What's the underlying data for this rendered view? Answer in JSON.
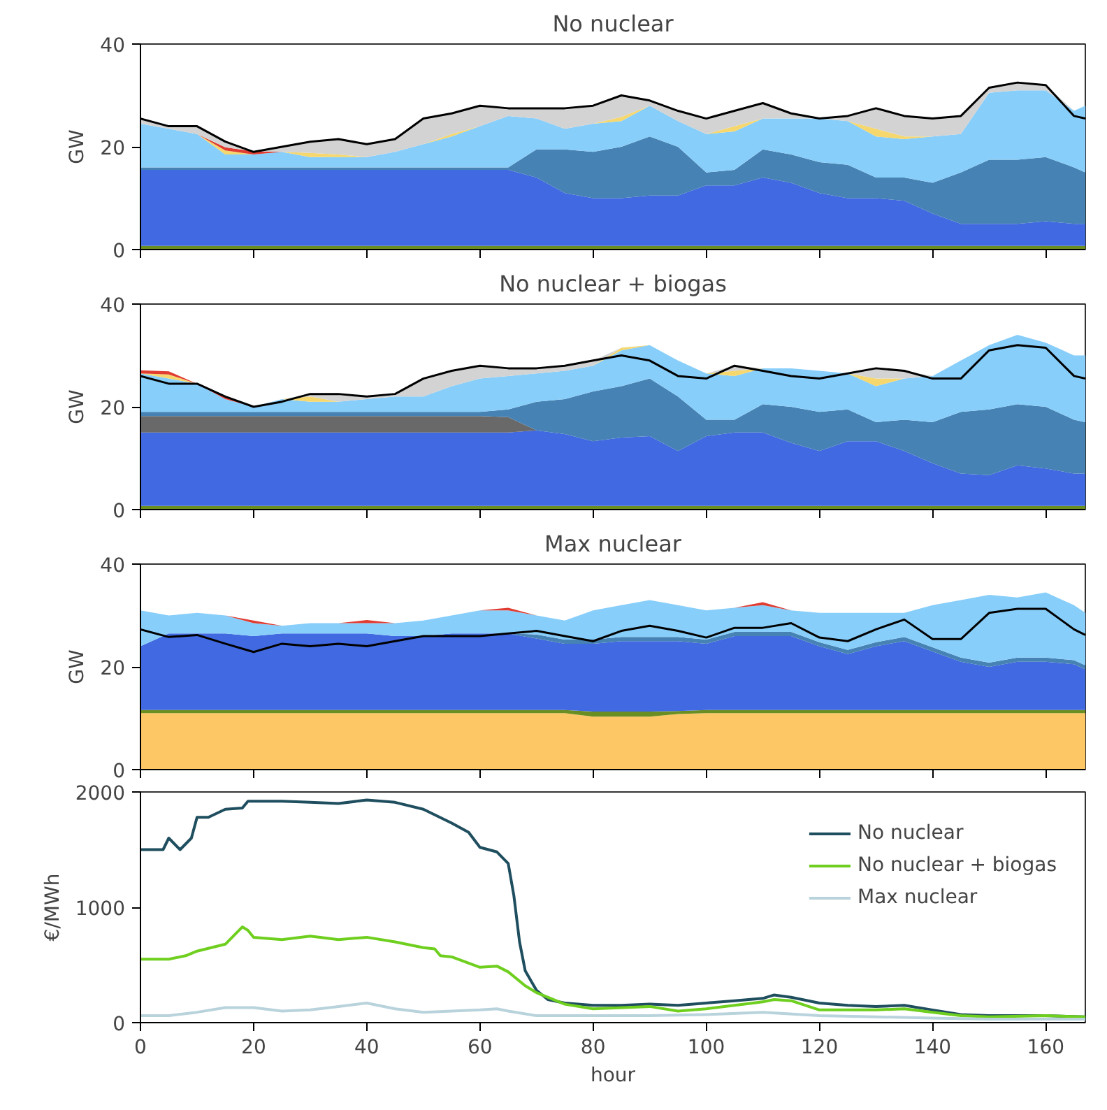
{
  "chart_data": [
    {
      "type": "area",
      "stacked": true,
      "title": "No nuclear",
      "ylabel": "GW",
      "xlim": [
        0,
        167
      ],
      "ylim": [
        0,
        40
      ],
      "xticks": [
        0,
        20,
        40,
        60,
        80,
        100,
        120,
        140,
        160
      ],
      "yticks": [
        0,
        20,
        40
      ],
      "tick_labels": "y",
      "x": [
        0,
        5,
        10,
        15,
        20,
        25,
        30,
        35,
        40,
        45,
        50,
        55,
        60,
        65,
        70,
        75,
        80,
        85,
        90,
        95,
        100,
        105,
        110,
        115,
        120,
        125,
        130,
        135,
        140,
        145,
        150,
        155,
        160,
        165,
        167
      ],
      "series": [
        {
          "color": "#6b8e23",
          "values": [
            0.7,
            0.7,
            0.7,
            0.7,
            0.7,
            0.7,
            0.7,
            0.7,
            0.7,
            0.7,
            0.7,
            0.7,
            0.7,
            0.7,
            0.7,
            0.7,
            0.7,
            0.7,
            0.7,
            0.7,
            0.7,
            0.7,
            0.7,
            0.7,
            0.7,
            0.7,
            0.7,
            0.7,
            0.7,
            0.7,
            0.7,
            0.7,
            0.7,
            0.7,
            0.7
          ]
        },
        {
          "color": "#4169e1",
          "values": [
            14.8,
            14.8,
            14.8,
            14.8,
            14.8,
            14.8,
            14.8,
            14.8,
            14.8,
            14.8,
            14.8,
            14.8,
            14.8,
            14.8,
            13.3,
            10.3,
            9.3,
            9.3,
            9.8,
            9.8,
            11.8,
            11.8,
            13.3,
            12.3,
            10.3,
            9.3,
            9.3,
            8.8,
            6.3,
            4.3,
            4.3,
            4.3,
            4.8,
            4.3,
            4.3
          ]
        },
        {
          "color": "#4682b4",
          "values": [
            0.5,
            0.5,
            0.5,
            0.5,
            0.5,
            0.5,
            0.5,
            0.5,
            0.5,
            0.5,
            0.5,
            0.5,
            0.5,
            0.5,
            5.5,
            8.5,
            9,
            10,
            11.5,
            9.5,
            2.5,
            3,
            5.5,
            5.5,
            6,
            6.5,
            4,
            4.5,
            6,
            10,
            12.5,
            12.5,
            12.5,
            11,
            10
          ]
        },
        {
          "color": "#87cefa",
          "values": [
            8.5,
            7.5,
            6.5,
            2.5,
            2.5,
            3,
            2,
            2,
            2,
            3,
            4.5,
            6,
            8,
            10,
            6,
            4,
            5.5,
            5,
            6,
            5,
            7.5,
            7.5,
            6,
            7,
            8.5,
            8.5,
            8,
            7.5,
            9,
            7.5,
            13,
            13.5,
            13,
            11,
            13
          ]
        },
        {
          "color": "#f5d76e",
          "values": [
            null,
            null,
            0,
            0.8,
            0,
            0,
            0.8,
            0.5,
            0,
            null,
            0,
            0.5,
            0,
            null,
            null,
            null,
            0,
            0.8,
            0,
            null,
            0,
            1,
            0,
            null,
            null,
            0,
            1.5,
            0.5,
            0,
            null,
            null,
            null,
            null,
            null,
            null
          ]
        },
        {
          "color": "#e03c31",
          "values": [
            null,
            null,
            0,
            0.6,
            0.6,
            0,
            null,
            null,
            null,
            null,
            null,
            null,
            null,
            null,
            null,
            null,
            null,
            null,
            null,
            null,
            null,
            null,
            null,
            null,
            null,
            null,
            null,
            null,
            null,
            null,
            null,
            null,
            null,
            null,
            null
          ]
        },
        {
          "color": "#d3d3d3",
          "values": [
            1,
            0.5,
            1.5,
            1.1,
            0,
            1,
            2.2,
            3,
            2.5,
            2.5,
            5,
            4,
            4,
            1.5,
            2,
            4,
            3.5,
            4.2,
            1,
            2,
            3,
            3,
            3,
            1,
            0,
            1,
            4,
            4,
            3.5,
            3.5,
            1,
            1.5,
            1,
            0,
            null
          ]
        },
        {
          "type": "line",
          "color": "#000000",
          "values": [
            25.5,
            24,
            24,
            21,
            19,
            20,
            21,
            21.5,
            20.5,
            21.5,
            25.5,
            26.5,
            28,
            27.5,
            27.5,
            27.5,
            28,
            30,
            29,
            27,
            25.5,
            27,
            28.5,
            26.5,
            25.5,
            26,
            27.5,
            26,
            25.5,
            26,
            31.5,
            32.5,
            32,
            26,
            25.5
          ]
        }
      ]
    },
    {
      "type": "area",
      "stacked": true,
      "title": "No nuclear + biogas",
      "ylabel": "GW",
      "xlim": [
        0,
        167
      ],
      "ylim": [
        0,
        40
      ],
      "xticks": [
        0,
        20,
        40,
        60,
        80,
        100,
        120,
        140,
        160
      ],
      "yticks": [
        0,
        20,
        40
      ],
      "tick_labels": "y",
      "x": [
        0,
        5,
        10,
        15,
        20,
        25,
        30,
        35,
        40,
        45,
        50,
        55,
        60,
        65,
        70,
        75,
        80,
        85,
        90,
        95,
        100,
        105,
        110,
        115,
        120,
        125,
        130,
        135,
        140,
        145,
        150,
        155,
        160,
        165,
        167
      ],
      "series": [
        {
          "color": "#6b8e23",
          "values": [
            0.7,
            0.7,
            0.7,
            0.7,
            0.7,
            0.7,
            0.7,
            0.7,
            0.7,
            0.7,
            0.7,
            0.7,
            0.7,
            0.7,
            0.7,
            0.7,
            0.7,
            0.7,
            0.7,
            0.7,
            0.7,
            0.7,
            0.7,
            0.7,
            0.7,
            0.7,
            0.7,
            0.7,
            0.7,
            0.7,
            0.7,
            0.7,
            0.7,
            0.7,
            0.7
          ]
        },
        {
          "color": "#4169e1",
          "values": [
            14.3,
            14.3,
            14.3,
            14.3,
            14.3,
            14.3,
            14.3,
            14.3,
            14.3,
            14.3,
            14.3,
            14.3,
            14.3,
            14.3,
            14.7,
            14,
            12.6,
            13.3,
            13.6,
            10.7,
            13.6,
            14.3,
            14.3,
            12.3,
            10.7,
            12.6,
            12.6,
            10.7,
            8.3,
            6.3,
            6,
            7.9,
            7.3,
            6.3,
            6.3
          ]
        },
        {
          "color": "#696969",
          "values": [
            3.2,
            3.2,
            3.2,
            3.2,
            3.2,
            3.2,
            3.2,
            3.2,
            3.2,
            3.2,
            3.2,
            3.2,
            3.2,
            3,
            0,
            null,
            null,
            null,
            null,
            null,
            null,
            null,
            null,
            null,
            null,
            null,
            null,
            null,
            null,
            null,
            null,
            null,
            null,
            null,
            null
          ]
        },
        {
          "color": "#4682b4",
          "values": [
            0.8,
            0.8,
            0.8,
            0.8,
            0.8,
            0.8,
            0.8,
            0.8,
            0.8,
            0.8,
            0.8,
            0.8,
            0.8,
            1.5,
            5.6,
            6.8,
            9.7,
            10,
            11.2,
            10.6,
            3.2,
            2.5,
            5.5,
            7,
            7.6,
            6.2,
            3.7,
            6.1,
            8,
            12,
            12.8,
            11.9,
            12,
            10.5,
            10
          ]
        },
        {
          "color": "#87cefa",
          "values": [
            7.5,
            6.5,
            5.5,
            2.5,
            1,
            2.5,
            2,
            2,
            2.5,
            3,
            3,
            5,
            6.5,
            6.5,
            5.5,
            5.5,
            5,
            7,
            6.5,
            7,
            9,
            8.5,
            7,
            7.5,
            8,
            7,
            7,
            8,
            9,
            10,
            12.5,
            13.5,
            12.5,
            12.5,
            13
          ]
        },
        {
          "color": "#f5d76e",
          "values": [
            0,
            0.8,
            0,
            null,
            null,
            0,
            1,
            0,
            null,
            null,
            null,
            null,
            null,
            null,
            null,
            null,
            0,
            0.5,
            0,
            null,
            0,
            1,
            0,
            null,
            null,
            0,
            1.5,
            0,
            null,
            null,
            null,
            null,
            null,
            null,
            null
          ]
        },
        {
          "color": "#e03c31",
          "values": [
            0.6,
            0.6,
            0,
            0.6,
            0,
            null,
            null,
            null,
            null,
            null,
            null,
            null,
            null,
            null,
            null,
            null,
            null,
            null,
            null,
            null,
            null,
            null,
            null,
            null,
            null,
            null,
            null,
            null,
            null,
            null,
            null,
            null,
            null,
            null,
            null
          ]
        },
        {
          "color": "#d3d3d3",
          "values": [
            null,
            null,
            null,
            null,
            null,
            0,
            0.5,
            1.5,
            0.5,
            0.5,
            3.5,
            3,
            2.5,
            1.5,
            1,
            1,
            1,
            0,
            null,
            null,
            0,
            1,
            0,
            null,
            null,
            0,
            2,
            1.5,
            0,
            null,
            null,
            null,
            null,
            null,
            null
          ]
        },
        {
          "type": "line",
          "color": "#000000",
          "values": [
            26,
            24.5,
            24.5,
            22,
            20,
            21,
            22.5,
            22.5,
            22,
            22.5,
            25.5,
            27,
            28,
            27.5,
            27.5,
            28,
            29,
            30,
            29,
            26,
            25.5,
            28,
            27,
            26,
            25.5,
            26.5,
            27.5,
            27,
            25.5,
            25.5,
            31,
            32,
            31.5,
            26,
            25.5
          ]
        }
      ]
    },
    {
      "type": "area",
      "stacked": true,
      "title": "Max nuclear",
      "ylabel": "GW",
      "xlim": [
        0,
        167
      ],
      "ylim": [
        0,
        40
      ],
      "xticks": [
        0,
        20,
        40,
        60,
        80,
        100,
        120,
        140,
        160
      ],
      "yticks": [
        0,
        20,
        40
      ],
      "tick_labels": "y",
      "x": [
        0,
        5,
        10,
        15,
        20,
        25,
        30,
        35,
        40,
        45,
        50,
        55,
        60,
        65,
        70,
        75,
        80,
        85,
        90,
        95,
        100,
        105,
        110,
        115,
        120,
        125,
        130,
        135,
        140,
        145,
        150,
        155,
        160,
        165,
        167
      ],
      "series": [
        {
          "color": "#fdc765",
          "values": [
            11,
            11,
            11,
            11,
            11,
            11,
            11,
            11,
            11,
            11,
            11,
            11,
            11,
            11,
            11,
            11,
            10.3,
            10.3,
            10.3,
            10.8,
            11,
            11,
            11,
            11,
            11,
            11,
            11,
            11,
            11,
            11,
            11,
            11,
            11,
            11,
            11
          ]
        },
        {
          "color": "#6b8e23",
          "values": [
            0.6,
            0.6,
            0.6,
            0.6,
            0.6,
            0.6,
            0.6,
            0.6,
            0.6,
            0.6,
            0.6,
            0.6,
            0.6,
            0.6,
            0.6,
            0.6,
            1,
            1,
            1,
            0.6,
            0.6,
            0.6,
            0.6,
            0.6,
            0.6,
            0.6,
            0.6,
            0.6,
            0.6,
            0.6,
            0.6,
            0.6,
            0.6,
            0.6,
            0.6
          ]
        },
        {
          "color": "#4169e1",
          "values": [
            12.4,
            14.9,
            14.9,
            14.9,
            14.4,
            14.9,
            14.9,
            14.9,
            14.9,
            14.4,
            14.4,
            14.9,
            14.9,
            14.9,
            13.9,
            12.9,
            13.2,
            13.7,
            13.7,
            13.6,
            12.9,
            14.4,
            14.4,
            14.4,
            12.4,
            10.9,
            12.4,
            13.4,
            11.4,
            9.4,
            8.4,
            9.4,
            9.4,
            8.9,
            7.9
          ]
        },
        {
          "color": "#4682b4",
          "values": [
            null,
            null,
            null,
            null,
            null,
            null,
            null,
            null,
            null,
            null,
            null,
            null,
            null,
            0,
            0.8,
            0.8,
            0.8,
            0.8,
            0.8,
            0.8,
            0.8,
            0.8,
            0.8,
            0.8,
            0.8,
            0.8,
            0.8,
            0.8,
            0.8,
            0.8,
            0.8,
            0.8,
            0.8,
            0.8,
            0.8
          ]
        },
        {
          "color": "#87cefa",
          "values": [
            7,
            3.5,
            4,
            3.5,
            2.5,
            1.5,
            2,
            2,
            2,
            2.5,
            3,
            3.5,
            4.5,
            4.5,
            3.7,
            3.7,
            5.7,
            6.2,
            7.2,
            6.2,
            5.7,
            4.7,
            5.2,
            4.2,
            5.7,
            7.2,
            5.7,
            4.7,
            8.2,
            11.2,
            13.2,
            11.7,
            12.7,
            10.7,
            10.2
          ]
        },
        {
          "color": "#e03c31",
          "values": [
            null,
            null,
            null,
            0,
            0.5,
            0,
            null,
            0,
            0.6,
            0,
            null,
            null,
            0,
            0.5,
            0,
            null,
            null,
            null,
            null,
            null,
            null,
            0,
            0.6,
            0,
            null,
            null,
            null,
            null,
            null,
            null,
            null,
            null,
            null,
            null,
            null
          ]
        },
        {
          "type": "line",
          "color": "#000000",
          "values": [
            27.3,
            25.8,
            26.2,
            24.5,
            22.9,
            24.5,
            24,
            24.5,
            24,
            25,
            26,
            26,
            26,
            26.5,
            27,
            26,
            25,
            27,
            28,
            27,
            25.7,
            27.6,
            27.6,
            28.5,
            25.7,
            25,
            27.3,
            29.2,
            25.4,
            25.4,
            30.5,
            31.3,
            31.3,
            27.3,
            26.2
          ]
        }
      ]
    },
    {
      "type": "line",
      "xlabel": "hour",
      "ylabel": "€/MWh",
      "xlim": [
        0,
        167
      ],
      "ylim": [
        0,
        2000
      ],
      "xticks": [
        0,
        20,
        40,
        60,
        80,
        100,
        120,
        140,
        160
      ],
      "yticks": [
        0,
        1000,
        2000
      ],
      "legend": "top right",
      "series": [
        {
          "name": "No nuclear",
          "color": "#1f4e5f",
          "x": [
            0,
            4,
            5,
            7,
            9,
            10,
            12,
            15,
            18,
            19,
            25,
            30,
            35,
            40,
            45,
            50,
            55,
            58,
            60,
            63,
            65,
            66,
            67,
            68,
            70,
            72,
            75,
            80,
            85,
            90,
            95,
            100,
            105,
            110,
            112,
            115,
            120,
            125,
            130,
            135,
            140,
            145,
            150,
            155,
            160,
            167
          ],
          "values": [
            1500,
            1500,
            1600,
            1500,
            1600,
            1780,
            1780,
            1850,
            1860,
            1920,
            1920,
            1910,
            1900,
            1930,
            1910,
            1850,
            1730,
            1650,
            1520,
            1480,
            1380,
            1100,
            700,
            450,
            280,
            200,
            170,
            150,
            150,
            160,
            150,
            170,
            190,
            210,
            240,
            220,
            170,
            150,
            140,
            150,
            110,
            70,
            60,
            60,
            60,
            50
          ]
        },
        {
          "name": "No nuclear + biogas",
          "color": "#6fcf1f",
          "x": [
            0,
            5,
            8,
            10,
            15,
            18,
            19,
            20,
            25,
            30,
            35,
            40,
            45,
            50,
            52,
            53,
            55,
            60,
            63,
            65,
            68,
            70,
            75,
            80,
            90,
            95,
            100,
            105,
            110,
            112,
            115,
            120,
            125,
            130,
            135,
            140,
            145,
            150,
            160,
            167
          ],
          "values": [
            550,
            550,
            580,
            620,
            680,
            830,
            800,
            740,
            720,
            750,
            720,
            740,
            700,
            650,
            640,
            580,
            570,
            480,
            490,
            440,
            320,
            260,
            160,
            120,
            140,
            100,
            120,
            150,
            180,
            200,
            190,
            110,
            110,
            110,
            120,
            90,
            60,
            50,
            60,
            50
          ]
        },
        {
          "name": "Max nuclear",
          "color": "#b9d3dc",
          "x": [
            0,
            5,
            10,
            15,
            20,
            25,
            30,
            35,
            40,
            45,
            50,
            55,
            60,
            63,
            65,
            70,
            80,
            90,
            100,
            110,
            120,
            130,
            140,
            150,
            167
          ],
          "values": [
            60,
            60,
            90,
            130,
            130,
            100,
            110,
            140,
            170,
            120,
            90,
            100,
            110,
            120,
            100,
            60,
            60,
            60,
            70,
            90,
            60,
            50,
            40,
            30,
            30
          ]
        }
      ]
    }
  ]
}
